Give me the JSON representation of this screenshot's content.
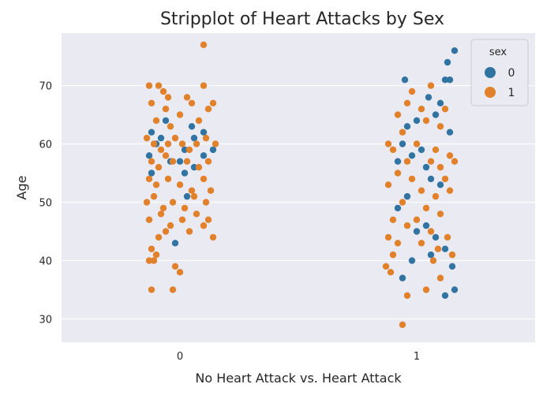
{
  "chart_data": {
    "type": "scatter",
    "title": "Stripplot of Heart Attacks by Sex",
    "xlabel": "No Heart Attack vs. Heart Attack",
    "ylabel": "Age",
    "categories": [
      "0",
      "1"
    ],
    "ylim": [
      26,
      79
    ],
    "yticks": [
      30,
      40,
      50,
      60,
      70
    ],
    "grid": true,
    "legend": {
      "title": "sex",
      "placement": "top-right",
      "entries": [
        "0",
        "1"
      ]
    },
    "colors": {
      "0": "#3274a1",
      "1": "#e1812c",
      "plot_bg": "#eaeaf2",
      "grid": "#ffffff"
    },
    "series": [
      {
        "name": "0",
        "points": [
          {
            "category": "0",
            "jitter": -0.12,
            "y": 62
          },
          {
            "category": "0",
            "jitter": -0.1,
            "y": 60
          },
          {
            "category": "0",
            "jitter": -0.13,
            "y": 58
          },
          {
            "category": "0",
            "jitter": -0.12,
            "y": 55
          },
          {
            "category": "0",
            "jitter": -0.08,
            "y": 61
          },
          {
            "category": "0",
            "jitter": -0.06,
            "y": 64
          },
          {
            "category": "0",
            "jitter": -0.04,
            "y": 57
          },
          {
            "category": "0",
            "jitter": 0.0,
            "y": 57
          },
          {
            "category": "0",
            "jitter": 0.02,
            "y": 59
          },
          {
            "category": "0",
            "jitter": 0.02,
            "y": 55
          },
          {
            "category": "0",
            "jitter": 0.05,
            "y": 63
          },
          {
            "category": "0",
            "jitter": 0.06,
            "y": 61
          },
          {
            "category": "0",
            "jitter": 0.1,
            "y": 62
          },
          {
            "category": "0",
            "jitter": 0.1,
            "y": 58
          },
          {
            "category": "0",
            "jitter": 0.14,
            "y": 59
          },
          {
            "category": "0",
            "jitter": -0.02,
            "y": 43
          },
          {
            "category": "0",
            "jitter": 0.03,
            "y": 51
          },
          {
            "category": "0",
            "jitter": 0.06,
            "y": 56
          },
          {
            "category": "1",
            "jitter": -0.05,
            "y": 71
          },
          {
            "category": "1",
            "jitter": 0.05,
            "y": 68
          },
          {
            "category": "1",
            "jitter": -0.04,
            "y": 63
          },
          {
            "category": "1",
            "jitter": 0.08,
            "y": 65
          },
          {
            "category": "1",
            "jitter": 0.1,
            "y": 67
          },
          {
            "category": "1",
            "jitter": 0.12,
            "y": 71
          },
          {
            "category": "1",
            "jitter": 0.14,
            "y": 71
          },
          {
            "category": "1",
            "jitter": 0.13,
            "y": 74
          },
          {
            "category": "1",
            "jitter": 0.16,
            "y": 76
          },
          {
            "category": "1",
            "jitter": -0.06,
            "y": 60
          },
          {
            "category": "1",
            "jitter": -0.02,
            "y": 58
          },
          {
            "category": "1",
            "jitter": 0.02,
            "y": 59
          },
          {
            "category": "1",
            "jitter": 0.06,
            "y": 54
          },
          {
            "category": "1",
            "jitter": 0.1,
            "y": 53
          },
          {
            "category": "1",
            "jitter": -0.08,
            "y": 49
          },
          {
            "category": "1",
            "jitter": -0.04,
            "y": 51
          },
          {
            "category": "1",
            "jitter": 0.0,
            "y": 45
          },
          {
            "category": "1",
            "jitter": 0.04,
            "y": 46
          },
          {
            "category": "1",
            "jitter": 0.08,
            "y": 44
          },
          {
            "category": "1",
            "jitter": 0.12,
            "y": 42
          },
          {
            "category": "1",
            "jitter": -0.02,
            "y": 40
          },
          {
            "category": "1",
            "jitter": 0.06,
            "y": 41
          },
          {
            "category": "1",
            "jitter": -0.06,
            "y": 37
          },
          {
            "category": "1",
            "jitter": 0.15,
            "y": 39
          },
          {
            "category": "1",
            "jitter": 0.12,
            "y": 34
          },
          {
            "category": "1",
            "jitter": 0.16,
            "y": 35
          },
          {
            "category": "1",
            "jitter": 0.04,
            "y": 56
          },
          {
            "category": "1",
            "jitter": 0.14,
            "y": 62
          },
          {
            "category": "1",
            "jitter": -0.08,
            "y": 57
          },
          {
            "category": "1",
            "jitter": 0.0,
            "y": 64
          }
        ]
      },
      {
        "name": "1",
        "points": [
          {
            "category": "0",
            "jitter": 0.1,
            "y": 77
          },
          {
            "category": "0",
            "jitter": -0.13,
            "y": 70
          },
          {
            "category": "0",
            "jitter": -0.09,
            "y": 70
          },
          {
            "category": "0",
            "jitter": -0.07,
            "y": 69
          },
          {
            "category": "0",
            "jitter": -0.05,
            "y": 68
          },
          {
            "category": "0",
            "jitter": 0.1,
            "y": 70
          },
          {
            "category": "0",
            "jitter": -0.12,
            "y": 67
          },
          {
            "category": "0",
            "jitter": -0.06,
            "y": 66
          },
          {
            "category": "0",
            "jitter": 0.03,
            "y": 68
          },
          {
            "category": "0",
            "jitter": 0.05,
            "y": 67
          },
          {
            "category": "0",
            "jitter": 0.12,
            "y": 66
          },
          {
            "category": "0",
            "jitter": 0.14,
            "y": 67
          },
          {
            "category": "0",
            "jitter": -0.1,
            "y": 64
          },
          {
            "category": "0",
            "jitter": -0.04,
            "y": 63
          },
          {
            "category": "0",
            "jitter": 0.0,
            "y": 65
          },
          {
            "category": "0",
            "jitter": 0.08,
            "y": 64
          },
          {
            "category": "0",
            "jitter": -0.14,
            "y": 61
          },
          {
            "category": "0",
            "jitter": -0.11,
            "y": 60
          },
          {
            "category": "0",
            "jitter": -0.08,
            "y": 59
          },
          {
            "category": "0",
            "jitter": -0.05,
            "y": 60
          },
          {
            "category": "0",
            "jitter": -0.02,
            "y": 61
          },
          {
            "category": "0",
            "jitter": 0.01,
            "y": 60
          },
          {
            "category": "0",
            "jitter": 0.04,
            "y": 59
          },
          {
            "category": "0",
            "jitter": 0.07,
            "y": 60
          },
          {
            "category": "0",
            "jitter": 0.11,
            "y": 61
          },
          {
            "category": "0",
            "jitter": 0.15,
            "y": 60
          },
          {
            "category": "0",
            "jitter": -0.12,
            "y": 57
          },
          {
            "category": "0",
            "jitter": -0.09,
            "y": 56
          },
          {
            "category": "0",
            "jitter": -0.06,
            "y": 58
          },
          {
            "category": "0",
            "jitter": -0.03,
            "y": 57
          },
          {
            "category": "0",
            "jitter": 0.03,
            "y": 57
          },
          {
            "category": "0",
            "jitter": 0.08,
            "y": 56
          },
          {
            "category": "0",
            "jitter": 0.12,
            "y": 57
          },
          {
            "category": "0",
            "jitter": -0.13,
            "y": 54
          },
          {
            "category": "0",
            "jitter": -0.1,
            "y": 53
          },
          {
            "category": "0",
            "jitter": -0.05,
            "y": 54
          },
          {
            "category": "0",
            "jitter": 0.0,
            "y": 53
          },
          {
            "category": "0",
            "jitter": 0.05,
            "y": 52
          },
          {
            "category": "0",
            "jitter": 0.1,
            "y": 54
          },
          {
            "category": "0",
            "jitter": 0.13,
            "y": 52
          },
          {
            "category": "0",
            "jitter": -0.14,
            "y": 50
          },
          {
            "category": "0",
            "jitter": -0.11,
            "y": 51
          },
          {
            "category": "0",
            "jitter": -0.07,
            "y": 49
          },
          {
            "category": "0",
            "jitter": -0.03,
            "y": 50
          },
          {
            "category": "0",
            "jitter": 0.02,
            "y": 49
          },
          {
            "category": "0",
            "jitter": 0.06,
            "y": 51
          },
          {
            "category": "0",
            "jitter": 0.11,
            "y": 50
          },
          {
            "category": "0",
            "jitter": -0.13,
            "y": 47
          },
          {
            "category": "0",
            "jitter": -0.08,
            "y": 48
          },
          {
            "category": "0",
            "jitter": -0.04,
            "y": 46
          },
          {
            "category": "0",
            "jitter": 0.01,
            "y": 47
          },
          {
            "category": "0",
            "jitter": 0.07,
            "y": 48
          },
          {
            "category": "0",
            "jitter": 0.12,
            "y": 47
          },
          {
            "category": "0",
            "jitter": -0.06,
            "y": 45
          },
          {
            "category": "0",
            "jitter": 0.04,
            "y": 45
          },
          {
            "category": "0",
            "jitter": 0.1,
            "y": 46
          },
          {
            "category": "0",
            "jitter": -0.09,
            "y": 44
          },
          {
            "category": "0",
            "jitter": 0.14,
            "y": 44
          },
          {
            "category": "0",
            "jitter": -0.12,
            "y": 42
          },
          {
            "category": "0",
            "jitter": -0.1,
            "y": 41
          },
          {
            "category": "0",
            "jitter": -0.13,
            "y": 40
          },
          {
            "category": "0",
            "jitter": -0.11,
            "y": 40
          },
          {
            "category": "0",
            "jitter": -0.02,
            "y": 39
          },
          {
            "category": "0",
            "jitter": 0.0,
            "y": 38
          },
          {
            "category": "0",
            "jitter": -0.12,
            "y": 35
          },
          {
            "category": "0",
            "jitter": -0.03,
            "y": 35
          },
          {
            "category": "1",
            "jitter": 0.06,
            "y": 70
          },
          {
            "category": "1",
            "jitter": -0.02,
            "y": 69
          },
          {
            "category": "1",
            "jitter": -0.04,
            "y": 67
          },
          {
            "category": "1",
            "jitter": 0.02,
            "y": 66
          },
          {
            "category": "1",
            "jitter": 0.12,
            "y": 66
          },
          {
            "category": "1",
            "jitter": -0.08,
            "y": 65
          },
          {
            "category": "1",
            "jitter": 0.04,
            "y": 64
          },
          {
            "category": "1",
            "jitter": 0.1,
            "y": 63
          },
          {
            "category": "1",
            "jitter": -0.06,
            "y": 62
          },
          {
            "category": "1",
            "jitter": -0.12,
            "y": 60
          },
          {
            "category": "1",
            "jitter": -0.1,
            "y": 59
          },
          {
            "category": "1",
            "jitter": 0.0,
            "y": 60
          },
          {
            "category": "1",
            "jitter": 0.08,
            "y": 59
          },
          {
            "category": "1",
            "jitter": 0.14,
            "y": 58
          },
          {
            "category": "1",
            "jitter": -0.04,
            "y": 57
          },
          {
            "category": "1",
            "jitter": 0.06,
            "y": 57
          },
          {
            "category": "1",
            "jitter": 0.1,
            "y": 56
          },
          {
            "category": "1",
            "jitter": 0.16,
            "y": 57
          },
          {
            "category": "1",
            "jitter": -0.08,
            "y": 55
          },
          {
            "category": "1",
            "jitter": -0.02,
            "y": 54
          },
          {
            "category": "1",
            "jitter": 0.12,
            "y": 54
          },
          {
            "category": "1",
            "jitter": -0.12,
            "y": 53
          },
          {
            "category": "1",
            "jitter": 0.02,
            "y": 52
          },
          {
            "category": "1",
            "jitter": 0.08,
            "y": 51
          },
          {
            "category": "1",
            "jitter": 0.14,
            "y": 52
          },
          {
            "category": "1",
            "jitter": -0.06,
            "y": 50
          },
          {
            "category": "1",
            "jitter": 0.04,
            "y": 49
          },
          {
            "category": "1",
            "jitter": 0.1,
            "y": 48
          },
          {
            "category": "1",
            "jitter": -0.1,
            "y": 47
          },
          {
            "category": "1",
            "jitter": -0.04,
            "y": 46
          },
          {
            "category": "1",
            "jitter": 0.0,
            "y": 47
          },
          {
            "category": "1",
            "jitter": 0.06,
            "y": 45
          },
          {
            "category": "1",
            "jitter": 0.13,
            "y": 44
          },
          {
            "category": "1",
            "jitter": -0.12,
            "y": 44
          },
          {
            "category": "1",
            "jitter": -0.08,
            "y": 43
          },
          {
            "category": "1",
            "jitter": 0.02,
            "y": 43
          },
          {
            "category": "1",
            "jitter": 0.09,
            "y": 42
          },
          {
            "category": "1",
            "jitter": -0.1,
            "y": 41
          },
          {
            "category": "1",
            "jitter": 0.15,
            "y": 41
          },
          {
            "category": "1",
            "jitter": -0.13,
            "y": 39
          },
          {
            "category": "1",
            "jitter": -0.11,
            "y": 38
          },
          {
            "category": "1",
            "jitter": 0.07,
            "y": 40
          },
          {
            "category": "1",
            "jitter": 0.1,
            "y": 37
          },
          {
            "category": "1",
            "jitter": -0.04,
            "y": 34
          },
          {
            "category": "1",
            "jitter": 0.04,
            "y": 35
          },
          {
            "category": "1",
            "jitter": -0.06,
            "y": 29
          }
        ]
      }
    ]
  }
}
